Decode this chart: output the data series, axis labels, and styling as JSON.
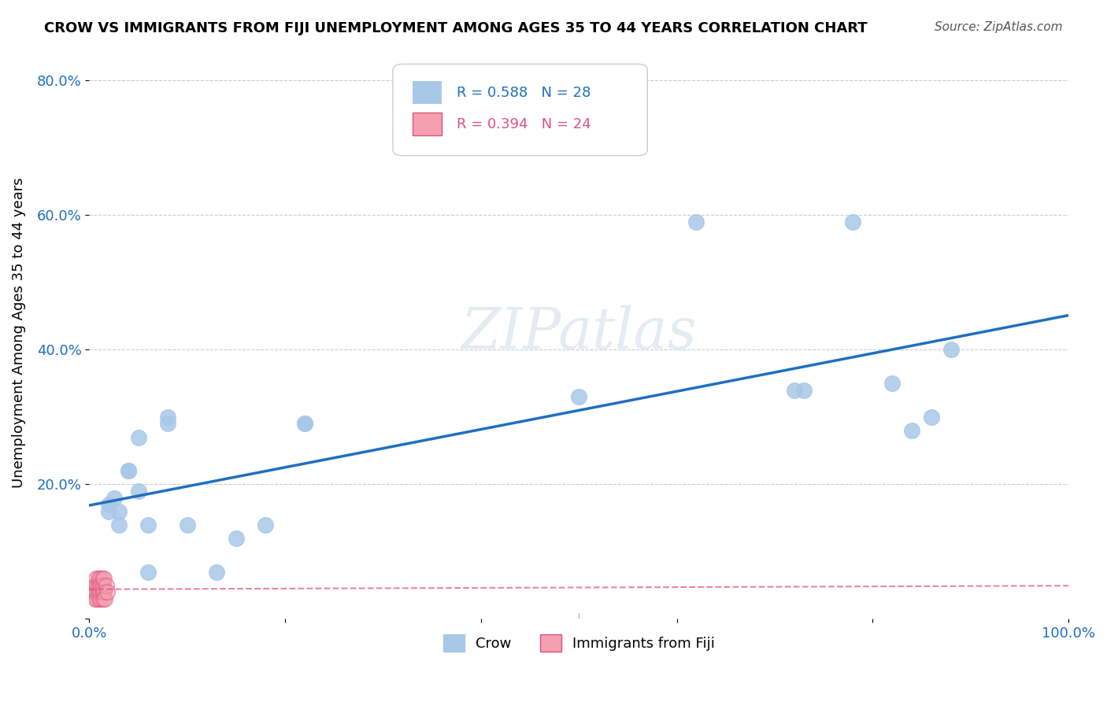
{
  "title": "CROW VS IMMIGRANTS FROM FIJI UNEMPLOYMENT AMONG AGES 35 TO 44 YEARS CORRELATION CHART",
  "source": "Source: ZipAtlas.com",
  "xlabel": "",
  "ylabel": "Unemployment Among Ages 35 to 44 years",
  "xlim": [
    0,
    1.0
  ],
  "ylim": [
    0,
    0.85
  ],
  "xticks": [
    0.0,
    0.2,
    0.4,
    0.6,
    0.8,
    1.0
  ],
  "xtick_labels": [
    "0.0%",
    "",
    "",
    "",
    "",
    "100.0%"
  ],
  "yticks": [
    0.0,
    0.2,
    0.4,
    0.6,
    0.8
  ],
  "ytick_labels": [
    "",
    "20.0%",
    "40.0%",
    "60.0%",
    "80.0%"
  ],
  "crow_color": "#a8c8e8",
  "crow_line_color": "#1f6fbf",
  "fiji_color": "#f4a0b0",
  "fiji_line_color": "#e05080",
  "crow_R": 0.588,
  "crow_N": 28,
  "fiji_R": 0.394,
  "fiji_N": 24,
  "crow_x": [
    0.02,
    0.02,
    0.025,
    0.03,
    0.03,
    0.04,
    0.04,
    0.05,
    0.05,
    0.06,
    0.06,
    0.08,
    0.08,
    0.1,
    0.13,
    0.15,
    0.18,
    0.22,
    0.22,
    0.5,
    0.62,
    0.72,
    0.73,
    0.78,
    0.82,
    0.84,
    0.86,
    0.88
  ],
  "crow_y": [
    0.17,
    0.16,
    0.18,
    0.16,
    0.14,
    0.22,
    0.22,
    0.27,
    0.19,
    0.14,
    0.07,
    0.3,
    0.29,
    0.14,
    0.07,
    0.12,
    0.14,
    0.29,
    0.29,
    0.33,
    0.59,
    0.34,
    0.34,
    0.59,
    0.35,
    0.28,
    0.3,
    0.4
  ],
  "fiji_x": [
    0.005,
    0.006,
    0.006,
    0.007,
    0.007,
    0.008,
    0.008,
    0.009,
    0.009,
    0.01,
    0.01,
    0.011,
    0.011,
    0.012,
    0.012,
    0.013,
    0.013,
    0.014,
    0.014,
    0.015,
    0.015,
    0.016,
    0.017,
    0.018
  ],
  "fiji_y": [
    0.04,
    0.03,
    0.05,
    0.04,
    0.06,
    0.03,
    0.05,
    0.04,
    0.06,
    0.03,
    0.05,
    0.04,
    0.06,
    0.03,
    0.05,
    0.04,
    0.06,
    0.03,
    0.05,
    0.04,
    0.06,
    0.03,
    0.05,
    0.04
  ],
  "watermark": "ZIPatlas",
  "marker_size": 200
}
